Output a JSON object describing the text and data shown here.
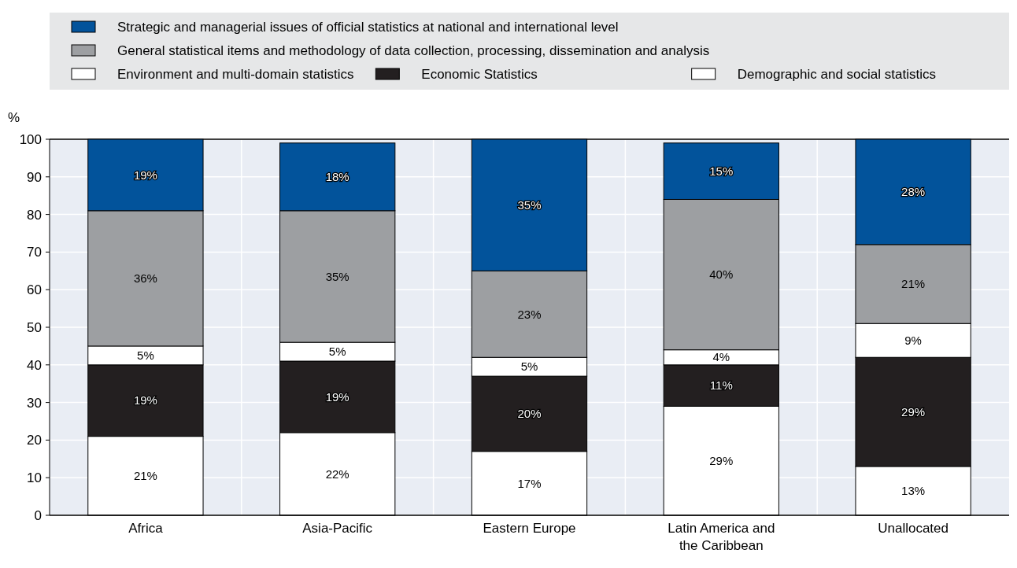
{
  "chart_data": {
    "type": "bar",
    "stacked": true,
    "ylabel": "%",
    "categories": [
      "Africa",
      "Asia-Pacific",
      "Eastern Europe",
      "Latin America and the Caribbean",
      "Unallocated"
    ],
    "series": [
      {
        "name": "Demographic and social statistics",
        "color": "#ffffff",
        "values": [
          21,
          22,
          17,
          29,
          13
        ],
        "value_labels": [
          "21%",
          "22%",
          "17%",
          "29%",
          "13%"
        ]
      },
      {
        "name": "Economic Statistics",
        "color": "#231f20",
        "values": [
          19,
          19,
          20,
          11,
          29
        ],
        "value_labels": [
          "19%",
          "19%",
          "20%",
          "11%",
          "29%"
        ]
      },
      {
        "name": "Environment and multi-domain statistics",
        "color": "#ffffff",
        "values": [
          5,
          5,
          5,
          4,
          9
        ],
        "value_labels": [
          "5%",
          "5%",
          "5%",
          "4%",
          "9%"
        ]
      },
      {
        "name": "General statistical items and methodology of data collection, processing, dissemination and analysis",
        "color": "#9d9fa2",
        "values": [
          36,
          35,
          23,
          40,
          21
        ],
        "value_labels": [
          "36%",
          "35%",
          "23%",
          "40%",
          "21%"
        ]
      },
      {
        "name": "Strategic and managerial issues of official statistics at national and international level",
        "color": "#02539b",
        "values": [
          19,
          18,
          35,
          15,
          28
        ],
        "value_labels": [
          "19%",
          "18%",
          "35%",
          "15%",
          "28%"
        ]
      }
    ],
    "ylim": [
      0,
      100
    ],
    "yticks": [
      0,
      10,
      20,
      30,
      40,
      50,
      60,
      70,
      80,
      90,
      100
    ],
    "grid": true,
    "legend": "top"
  }
}
